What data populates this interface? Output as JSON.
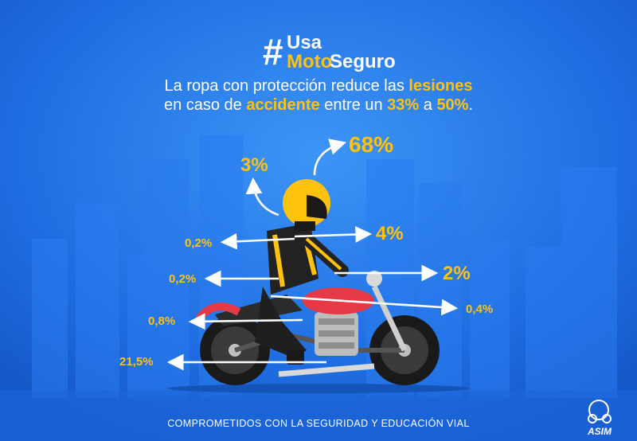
{
  "hashtag": {
    "symbol": "#",
    "word1": "Usa",
    "word2": "Moto",
    "word3": "Seguro"
  },
  "headline": {
    "line1_a": "La ropa con protección reduce las ",
    "line1_b": "lesiones",
    "line2_a": "en caso de ",
    "line2_b": "accidente",
    "line2_c": " entre un ",
    "line2_d": "33%",
    "line2_e": " a ",
    "line2_f": "50%",
    "line2_g": "."
  },
  "stats": {
    "head_top": "68%",
    "neck": "3%",
    "torso_right": "4%",
    "torso_left": "0,2%",
    "arm_left": "0,2%",
    "arm_right": "2%",
    "hip_right": "0,4%",
    "hip_left": "0,8%",
    "leg_left": "21,5%"
  },
  "footer": {
    "text": "COMPROMETIDOS CON LA SEGURIDAD Y EDUCACIÓN VIAL",
    "logo": "ASIM"
  },
  "colors": {
    "background": "#1f6fe3",
    "accent": "#ffc20e",
    "text": "#ffffff"
  }
}
